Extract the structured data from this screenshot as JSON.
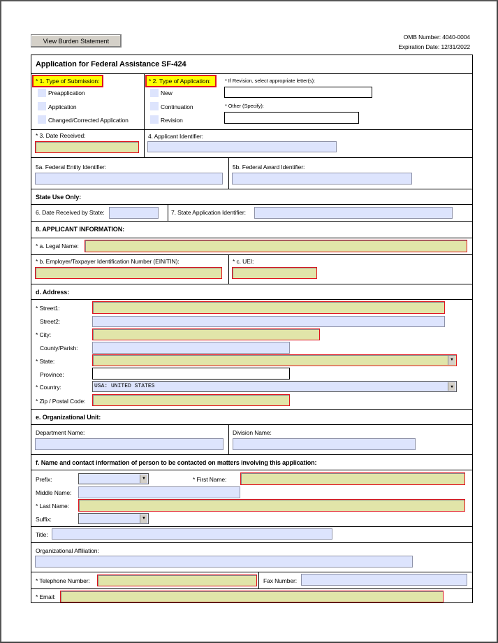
{
  "header": {
    "burden_button": "View Burden Statement",
    "omb_number": "OMB Number: 4040-0004",
    "expiration": "Expiration Date: 12/31/2022"
  },
  "form_title": "Application for Federal Assistance SF-424",
  "submission": {
    "label": "* 1. Type of Submission:",
    "options": [
      "Preapplication",
      "Application",
      "Changed/Corrected Application"
    ]
  },
  "application": {
    "label": "* 2. Type of Application:",
    "options": [
      "New",
      "Continuation",
      "Revision"
    ],
    "revision_label": "* If Revision, select appropriate letter(s):",
    "other_label": "* Other (Specify):"
  },
  "date_received": "* 3. Date Received:",
  "applicant_identifier": "4. Applicant Identifier:",
  "federal_entity": "5a. Federal Entity Identifier:",
  "federal_award": "5b. Federal Award Identifier:",
  "state_use": "State Use Only:",
  "date_state": "6. Date Received by State:",
  "state_app_id": "7. State Application Identifier:",
  "applicant_info": "8. APPLICANT INFORMATION:",
  "legal_name": "* a. Legal Name:",
  "ein": "* b. Employer/Taxpayer Identification Number (EIN/TIN):",
  "uei": "* c. UEI:",
  "address": {
    "heading": "d. Address:",
    "street1": "* Street1:",
    "street2": "Street2:",
    "city": "* City:",
    "county": "County/Parish:",
    "state": "* State:",
    "province": "Province:",
    "country": "* Country:",
    "country_value": "USA: UNITED STATES",
    "zip": "* Zip / Postal Code:"
  },
  "org_unit": {
    "heading": "e. Organizational Unit:",
    "department": "Department Name:",
    "division": "Division Name:"
  },
  "contact": {
    "heading": "f. Name and contact information of person to be contacted on matters involving this application:",
    "prefix": "Prefix:",
    "first_name": "* First Name:",
    "middle_name": "Middle Name:",
    "last_name": "* Last Name:",
    "suffix": "Suffix:",
    "title": "Title:",
    "org_affiliation": "Organizational Affiliation:",
    "telephone": "* Telephone Number:",
    "fax": "Fax Number:",
    "email": "* Email:"
  },
  "colors": {
    "required_fill": "#e1e5a9",
    "required_border": "#e0141e",
    "optional_fill": "#dde4fd",
    "highlight": "#ffff00"
  }
}
